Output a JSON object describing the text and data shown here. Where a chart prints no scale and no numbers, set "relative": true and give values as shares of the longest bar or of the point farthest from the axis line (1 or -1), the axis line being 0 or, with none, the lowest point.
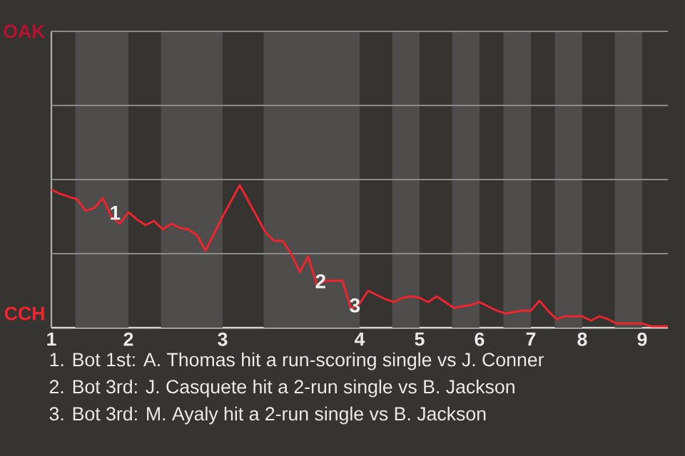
{
  "chart_data": {
    "type": "line",
    "relative": true,
    "categories": [
      "1",
      null,
      null,
      null,
      null,
      null,
      null,
      null,
      null,
      "2",
      null,
      null,
      null,
      null,
      null,
      null,
      null,
      null,
      null,
      null,
      "3",
      null,
      null,
      null,
      null,
      null,
      null,
      null,
      null,
      null,
      null,
      null,
      null,
      null,
      null,
      null,
      "4",
      null,
      null,
      null,
      null,
      null,
      null,
      "5",
      null,
      null,
      null,
      null,
      null,
      null,
      "6",
      null,
      null,
      null,
      null,
      null,
      "7",
      null,
      null,
      null,
      null,
      null,
      "8",
      null,
      null,
      null,
      null,
      null,
      null,
      "9",
      null,
      null,
      null
    ],
    "series": [
      {
        "color": "#f0232e",
        "values": [
          0.97,
          0.94,
          0.92,
          0.9,
          0.82,
          0.84,
          0.91,
          0.78,
          0.73,
          0.81,
          0.76,
          0.72,
          0.75,
          0.69,
          0.73,
          0.7,
          0.69,
          0.65,
          0.54,
          0.66,
          0.78,
          0.89,
          1,
          0.89,
          0.78,
          0.67,
          0.61,
          0.61,
          0.52,
          0.39,
          0.5,
          0.3,
          0.33,
          0.33,
          0.33,
          0.13,
          0.17,
          0.26,
          0.23,
          0.2,
          0.18,
          0.21,
          0.22,
          0.21,
          0.18,
          0.22,
          0.18,
          0.14,
          0.15,
          0.16,
          0.18,
          0.15,
          0.12,
          0.1,
          0.11,
          0.12,
          0.12,
          0.19,
          0.12,
          0.06,
          0.08,
          0.08,
          0.08,
          0.05,
          0.08,
          0.06,
          0.03,
          0.03,
          0.03,
          0.03,
          0.01,
          0.01,
          0.01
        ]
      }
    ],
    "ref_lines": [
      {
        "axis": "y",
        "value": 0.52,
        "color": "#8a8a8a"
      }
    ],
    "annotations": [
      {
        "text": "1",
        "y": 0.78
      },
      {
        "text": "2",
        "y": 0.3
      },
      {
        "text": "3",
        "y": 0.13
      },
      "OAK",
      "CCH",
      "1. Bot 1st: A. Thomas hit a run-scoring single vs J. Conner",
      "2. Bot 3rd: J. Casquete hit a 2-run single vs B. Jackson",
      "3. Bot 3rd: M. Ayaly hit a 2-run single vs B. Jackson"
    ]
  }
}
